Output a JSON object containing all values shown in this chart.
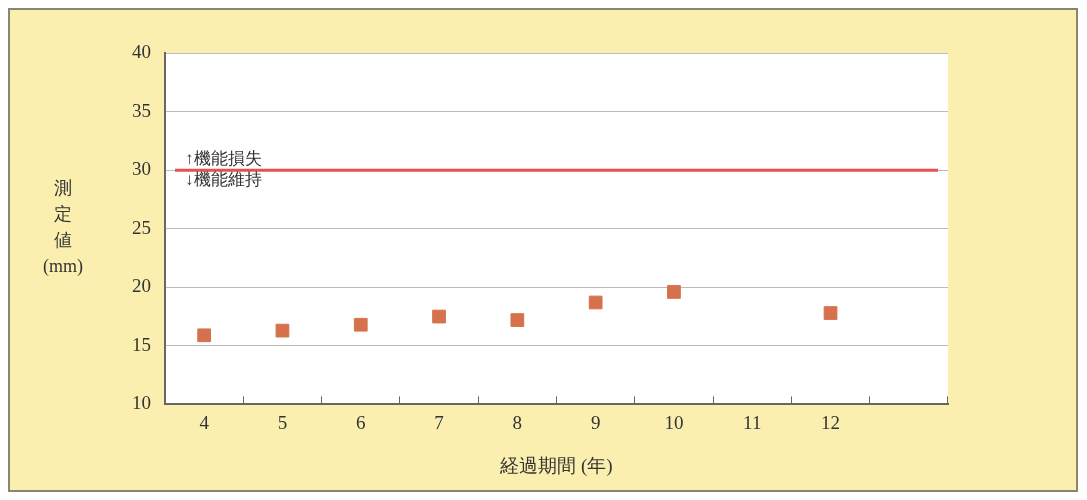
{
  "chart_data": {
    "type": "scatter",
    "xlabel": "経過期間 (年)",
    "ylabel": "測定値(mm)",
    "categories": [
      "4",
      "5",
      "6",
      "7",
      "8",
      "9",
      "10",
      "11",
      "12",
      null
    ],
    "series": [
      {
        "color": "#d6714e",
        "values": [
          15.9,
          16.3,
          16.8,
          17.5,
          17.2,
          18.7,
          19.6,
          null,
          17.8,
          null
        ]
      }
    ],
    "ylim": [
      10,
      40
    ],
    "yticks": [
      10,
      15,
      20,
      25,
      30,
      35,
      40
    ],
    "grid": "y",
    "legend": false,
    "marker": "square",
    "ref_lines": [
      {
        "axis": "y",
        "value": 30,
        "color": "#e8504f"
      }
    ],
    "annotations": [
      {
        "text": "↑機能損失",
        "y": 30
      },
      {
        "text": "↓機能維持",
        "y": 30
      }
    ]
  }
}
